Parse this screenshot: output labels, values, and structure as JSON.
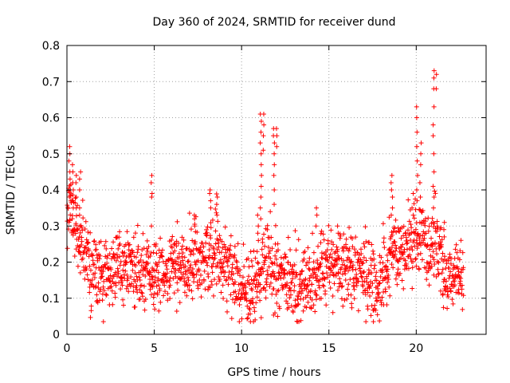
{
  "chart_data": {
    "type": "scatter",
    "title": "Day 360 of 2024, SRMTID for receiver dund",
    "xlabel": "GPS time / hours",
    "ylabel": "SRMTID / TECUs",
    "xlim": [
      0,
      24
    ],
    "ylim": [
      0,
      0.8
    ],
    "xticks": [
      0,
      5,
      10,
      15,
      20
    ],
    "yticks": [
      0,
      0.1,
      0.2,
      0.3,
      0.4,
      0.5,
      0.6,
      0.7,
      0.8
    ],
    "xtick_labels": [
      "0",
      "5",
      "10",
      "15",
      "20"
    ],
    "ytick_labels": [
      "0",
      "0.1",
      "0.2",
      "0.3",
      "0.4",
      "0.5",
      "0.6",
      "0.7",
      "0.8"
    ],
    "grid": true,
    "marker": "+",
    "color": "#ff0000",
    "series": [
      {
        "name": "SRMTID",
        "envelope_x": [
          0,
          0.2,
          0.5,
          0.8,
          1.0,
          1.3,
          2,
          3,
          4,
          4.8,
          5.3,
          6,
          7,
          8,
          8.5,
          9,
          9.6,
          10,
          10.5,
          10.9,
          11.3,
          11.8,
          12.2,
          13,
          13.8,
          14.5,
          15,
          16,
          16.8,
          17.5,
          18.2,
          18.6,
          19.2,
          19.9,
          20.3,
          20.7,
          21.1,
          21.5,
          22,
          22.7
        ],
        "envelope_y": [
          0.36,
          0.34,
          0.3,
          0.26,
          0.22,
          0.16,
          0.17,
          0.19,
          0.18,
          0.17,
          0.16,
          0.18,
          0.19,
          0.21,
          0.22,
          0.2,
          0.16,
          0.11,
          0.12,
          0.16,
          0.19,
          0.18,
          0.15,
          0.14,
          0.13,
          0.17,
          0.18,
          0.19,
          0.17,
          0.13,
          0.17,
          0.24,
          0.23,
          0.25,
          0.28,
          0.22,
          0.26,
          0.2,
          0.17,
          0.16
        ],
        "spread": 0.05,
        "n_points": 1700,
        "spikes": [
          {
            "x": 0.15,
            "values": [
              0.52,
              0.5,
              0.48,
              0.45,
              0.43,
              0.4,
              0.38
            ]
          },
          {
            "x": 0.35,
            "values": [
              0.47,
              0.45,
              0.42,
              0.4,
              0.37,
              0.35
            ]
          },
          {
            "x": 0.55,
            "values": [
              0.44,
              0.42,
              0.38,
              0.35
            ]
          },
          {
            "x": 0.75,
            "values": [
              0.45,
              0.43,
              0.4,
              0.35,
              0.33
            ]
          },
          {
            "x": 4.85,
            "values": [
              0.44,
              0.42,
              0.39,
              0.38,
              0.3
            ]
          },
          {
            "x": 7.3,
            "values": [
              0.33,
              0.32,
              0.3
            ]
          },
          {
            "x": 8.2,
            "values": [
              0.4,
              0.39,
              0.37,
              0.35
            ]
          },
          {
            "x": 8.6,
            "values": [
              0.38,
              0.36,
              0.33
            ]
          },
          {
            "x": 10.95,
            "values": [
              0.33,
              0.3,
              0.28,
              0.26
            ]
          },
          {
            "x": 11.1,
            "values": [
              0.61,
              0.59,
              0.56,
              0.53,
              0.5,
              0.47,
              0.44,
              0.41,
              0.38,
              0.35,
              0.32
            ]
          },
          {
            "x": 11.25,
            "values": [
              0.61,
              0.58,
              0.55,
              0.51
            ]
          },
          {
            "x": 11.85,
            "values": [
              0.57,
              0.55,
              0.53,
              0.5,
              0.47,
              0.44,
              0.4,
              0.36
            ]
          },
          {
            "x": 12.0,
            "values": [
              0.57,
              0.55,
              0.52
            ]
          },
          {
            "x": 14.3,
            "values": [
              0.35,
              0.33,
              0.3
            ]
          },
          {
            "x": 15.5,
            "values": [
              0.3,
              0.28
            ]
          },
          {
            "x": 18.6,
            "values": [
              0.44,
              0.42,
              0.4,
              0.38,
              0.35,
              0.33
            ]
          },
          {
            "x": 19.8,
            "values": [
              0.35,
              0.33
            ]
          },
          {
            "x": 20.05,
            "values": [
              0.63,
              0.6,
              0.56,
              0.52,
              0.48,
              0.44,
              0.4,
              0.37
            ]
          },
          {
            "x": 20.25,
            "values": [
              0.53,
              0.5,
              0.47,
              0.42,
              0.38
            ]
          },
          {
            "x": 21.0,
            "values": [
              0.73,
              0.71,
              0.68,
              0.63,
              0.58,
              0.55,
              0.5,
              0.45,
              0.41,
              0.38,
              0.35
            ]
          },
          {
            "x": 21.15,
            "values": [
              0.72,
              0.68
            ]
          },
          {
            "x": 21.6,
            "values": [
              0.31,
              0.29,
              0.27
            ]
          }
        ]
      }
    ]
  }
}
